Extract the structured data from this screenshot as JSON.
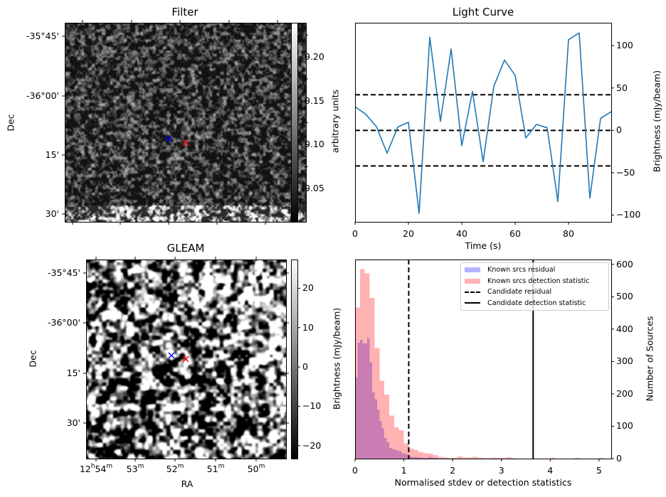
{
  "figure": {
    "panels": {
      "filter": {
        "title": "Filter",
        "ylabel": "Dec",
        "dec_ticks": [
          "-35°45'",
          "-36°00'",
          "15'",
          "30'"
        ],
        "colorbar": {
          "label": "arbitrary units",
          "range": [
            0.012,
            0.239
          ],
          "ticks": [
            "0.05",
            "0.10",
            "0.15",
            "0.20"
          ],
          "tick_values": [
            0.05,
            0.1,
            0.15,
            0.2
          ],
          "colormap": "gray"
        },
        "markers": [
          {
            "name": "blue-x-marker",
            "color": "#0000ff",
            "symbol": "x"
          },
          {
            "name": "red-x-marker",
            "color": "#ff0000",
            "symbol": "x"
          }
        ]
      },
      "gleam": {
        "title": "GLEAM",
        "xlabel": "RA",
        "ylabel": "Dec",
        "ra_ticks": [
          {
            "h": "12",
            "m": "54",
            "full": true
          },
          {
            "m": "53"
          },
          {
            "m": "52"
          },
          {
            "m": "51"
          },
          {
            "m": "50"
          }
        ],
        "dec_ticks": [
          "-35°45'",
          "-36°00'",
          "15'",
          "30'"
        ],
        "colorbar": {
          "label": "Brightness (mJy/beam)",
          "range": [
            -23.3,
            27.3
          ],
          "ticks": [
            "−20",
            "−10",
            "0",
            "10",
            "20"
          ],
          "tick_values": [
            -20,
            -10,
            0,
            10,
            20
          ],
          "colormap": "gray"
        },
        "markers": [
          {
            "name": "blue-x-marker",
            "color": "#0000ff",
            "symbol": "x"
          },
          {
            "name": "red-x-marker",
            "color": "#ff0000",
            "symbol": "x"
          }
        ],
        "sup_h": "h",
        "sup_m": "m"
      }
    }
  },
  "chart_data": [
    {
      "type": "line",
      "title": "Light Curve",
      "xlabel": "Time (s)",
      "ylabel": "Brightness (mJy/beam)",
      "xlim": [
        0,
        96
      ],
      "ylim": [
        -108,
        127
      ],
      "x_ticks": [
        0,
        20,
        40,
        60,
        80
      ],
      "y_ticks": [
        -100,
        -50,
        0,
        50,
        100
      ],
      "y_tick_labels": [
        "−100",
        "−50",
        "0",
        "50",
        "100"
      ],
      "y_axis_side": "right",
      "grid": false,
      "series": [
        {
          "name": "light curve",
          "color": "#1f77b4",
          "x": [
            0,
            4,
            8,
            12,
            16,
            20,
            24,
            28,
            32,
            36,
            40,
            44,
            48,
            52,
            56,
            60,
            64,
            68,
            72,
            76,
            80,
            84,
            88,
            92,
            96
          ],
          "y": [
            28,
            19,
            4.5,
            -27,
            4,
            9.5,
            -98,
            110,
            10.7,
            96,
            -18,
            46,
            -37,
            52,
            83,
            65,
            -9,
            7,
            3,
            -84,
            107,
            115,
            -80,
            14,
            22
          ]
        }
      ],
      "hlines": [
        {
          "name": "upper-threshold",
          "y": 42,
          "style": "dashed",
          "color": "#000000"
        },
        {
          "name": "zero-line",
          "y": 0,
          "style": "dashed",
          "color": "#000000"
        },
        {
          "name": "lower-threshold",
          "y": -42,
          "style": "dashed",
          "color": "#000000"
        }
      ]
    },
    {
      "type": "bar",
      "subtype": "histogram",
      "title": "",
      "xlabel": "Normalised stdev or detection statistics",
      "ylabel": "Number of Sources",
      "xlim": [
        0,
        5.25
      ],
      "ylim": [
        0,
        615
      ],
      "x_ticks": [
        0,
        1,
        2,
        3,
        4,
        5
      ],
      "y_ticks": [
        0,
        100,
        200,
        300,
        400,
        500,
        600
      ],
      "y_axis_side": "right",
      "legend_position": "top-right",
      "series": [
        {
          "name": "Known srcs residual",
          "color": "#0000ff",
          "alpha": 0.3,
          "bin_width": 0.05,
          "bin_start": 0,
          "counts": [
            250,
            358,
            367,
            356,
            356,
            372,
            298,
            205,
            183,
            152,
            116,
            93,
            64,
            51,
            33,
            30,
            28,
            25,
            23,
            17,
            15,
            12,
            8,
            6,
            5,
            4,
            3,
            3,
            2,
            2,
            6,
            4,
            2,
            2,
            1,
            1,
            1,
            1,
            0,
            0,
            1,
            0,
            0,
            0,
            0,
            0,
            0,
            0,
            0,
            0,
            1
          ]
        },
        {
          "name": "Known srcs detection statistic",
          "color": "#ff0000",
          "alpha": 0.3,
          "bin_width": 0.1,
          "bin_start": 0,
          "counts": [
            467,
            585,
            572,
            496,
            342,
            241,
            198,
            133,
            97,
            88,
            47,
            31,
            26,
            20,
            17,
            15,
            11,
            6,
            3,
            2,
            2,
            7,
            3,
            3,
            5,
            3,
            2,
            2,
            3,
            2,
            2,
            4,
            1,
            0,
            0,
            0,
            0,
            0,
            0,
            0,
            3,
            0,
            0,
            0,
            0,
            2,
            0,
            0,
            0,
            0,
            2
          ]
        }
      ],
      "vlines": [
        {
          "name": "Candidate residual",
          "x": 1.1,
          "style": "dashed",
          "color": "#000000"
        },
        {
          "name": "Candidate detection statistic",
          "x": 3.65,
          "style": "solid",
          "color": "#000000"
        }
      ],
      "legend": [
        {
          "label": "Known srcs residual",
          "kind": "patch",
          "color": "#b3b3ff"
        },
        {
          "label": "Known srcs detection statistic",
          "kind": "patch",
          "color": "#ffb3b3"
        },
        {
          "label": "Candidate residual",
          "kind": "dashed-line",
          "color": "#000000"
        },
        {
          "label": "Candidate detection statistic",
          "kind": "solid-line",
          "color": "#000000"
        }
      ]
    }
  ]
}
